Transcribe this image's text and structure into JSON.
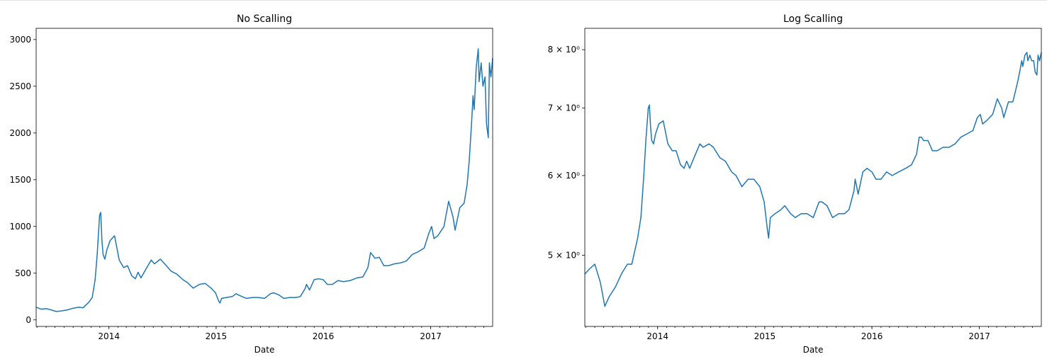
{
  "chart_data": [
    {
      "type": "line",
      "title": "No Scalling",
      "xlabel": "Date",
      "ylabel": "",
      "scale": "linear",
      "line_color": "#1f77b4",
      "xlim": [
        "2013-04-28",
        "2017-07-31"
      ],
      "ylim": [
        -70,
        3120
      ],
      "x_tick_labels": [
        "2014",
        "2015",
        "2016",
        "2017"
      ],
      "y_tick_labels": [
        "0",
        "500",
        "1000",
        "1500",
        "2000",
        "2500",
        "3000"
      ],
      "y_tick_values": [
        0,
        500,
        1000,
        1500,
        2000,
        2500,
        3000
      ],
      "grid": false,
      "series": [
        {
          "x": [
            "2013-04-28",
            "2013-05-15",
            "2013-06-01",
            "2013-06-20",
            "2013-07-05",
            "2013-07-20",
            "2013-08-10",
            "2013-09-01",
            "2013-09-20",
            "2013-10-05",
            "2013-10-25",
            "2013-11-05",
            "2013-11-15",
            "2013-11-22",
            "2013-11-30",
            "2013-12-04",
            "2013-12-08",
            "2013-12-12",
            "2013-12-18",
            "2013-12-25",
            "2014-01-05",
            "2014-01-20",
            "2014-02-05",
            "2014-02-20",
            "2014-03-05",
            "2014-03-20",
            "2014-04-01",
            "2014-04-10",
            "2014-04-20",
            "2014-05-10",
            "2014-05-25",
            "2014-06-05",
            "2014-06-25",
            "2014-07-10",
            "2014-08-01",
            "2014-08-20",
            "2014-09-10",
            "2014-09-25",
            "2014-10-15",
            "2014-11-05",
            "2014-11-25",
            "2014-12-15",
            "2014-12-30",
            "2015-01-10",
            "2015-01-14",
            "2015-01-20",
            "2015-02-05",
            "2015-02-25",
            "2015-03-10",
            "2015-03-30",
            "2015-04-15",
            "2015-05-05",
            "2015-05-25",
            "2015-06-15",
            "2015-07-05",
            "2015-07-15",
            "2015-08-01",
            "2015-08-20",
            "2015-09-10",
            "2015-09-30",
            "2015-10-15",
            "2015-11-01",
            "2015-11-05",
            "2015-11-15",
            "2015-12-01",
            "2015-12-15",
            "2016-01-01",
            "2016-01-15",
            "2016-02-01",
            "2016-02-20",
            "2016-03-10",
            "2016-04-01",
            "2016-04-25",
            "2016-05-15",
            "2016-06-01",
            "2016-06-10",
            "2016-06-18",
            "2016-06-25",
            "2016-07-10",
            "2016-07-25",
            "2016-08-10",
            "2016-08-30",
            "2016-09-20",
            "2016-10-10",
            "2016-10-30",
            "2016-11-20",
            "2016-12-10",
            "2016-12-25",
            "2017-01-04",
            "2017-01-12",
            "2017-01-25",
            "2017-02-15",
            "2017-03-03",
            "2017-03-18",
            "2017-03-25",
            "2017-04-10",
            "2017-04-25",
            "2017-05-05",
            "2017-05-12",
            "2017-05-20",
            "2017-05-25",
            "2017-05-29",
            "2017-06-05",
            "2017-06-12",
            "2017-06-15",
            "2017-06-22",
            "2017-06-28",
            "2017-07-05",
            "2017-07-10",
            "2017-07-16",
            "2017-07-20",
            "2017-07-25",
            "2017-07-31"
          ],
          "y": [
            135,
            115,
            120,
            105,
            90,
            95,
            105,
            125,
            135,
            130,
            190,
            240,
            430,
            700,
            1120,
            1150,
            850,
            700,
            650,
            750,
            850,
            900,
            640,
            560,
            580,
            470,
            440,
            510,
            450,
            560,
            640,
            600,
            650,
            600,
            520,
            490,
            430,
            400,
            340,
            380,
            390,
            340,
            290,
            200,
            180,
            230,
            240,
            250,
            280,
            250,
            230,
            240,
            240,
            230,
            280,
            290,
            270,
            230,
            240,
            240,
            250,
            340,
            380,
            320,
            430,
            440,
            430,
            380,
            380,
            420,
            410,
            420,
            450,
            460,
            560,
            720,
            690,
            660,
            670,
            580,
            580,
            600,
            610,
            630,
            700,
            730,
            770,
            920,
            1000,
            870,
            900,
            1000,
            1270,
            1100,
            960,
            1200,
            1250,
            1450,
            1700,
            2100,
            2400,
            2250,
            2700,
            2900,
            2550,
            2750,
            2500,
            2600,
            2100,
            1950,
            2750,
            2600,
            2800
          ]
        }
      ]
    },
    {
      "type": "line",
      "title": "Log Scalling",
      "xlabel": "Date",
      "ylabel": "",
      "scale": "log",
      "line_color": "#1f77b4",
      "xlim": [
        "2013-04-28",
        "2017-07-31"
      ],
      "ylim": [
        4.25,
        8.4
      ],
      "x_tick_labels": [
        "2014",
        "2015",
        "2016",
        "2017"
      ],
      "y_tick_labels": [
        "5 × 10⁰",
        "6 × 10⁰",
        "7 × 10⁰",
        "8 × 10⁰"
      ],
      "y_tick_values": [
        5,
        6,
        7,
        8
      ],
      "grid": false,
      "series": [
        {
          "x": [
            "2013-04-28",
            "2013-05-15",
            "2013-06-01",
            "2013-06-20",
            "2013-07-05",
            "2013-07-20",
            "2013-08-10",
            "2013-09-01",
            "2013-09-20",
            "2013-10-05",
            "2013-10-25",
            "2013-11-05",
            "2013-11-15",
            "2013-11-22",
            "2013-11-30",
            "2013-12-04",
            "2013-12-08",
            "2013-12-12",
            "2013-12-18",
            "2013-12-25",
            "2014-01-05",
            "2014-01-20",
            "2014-02-05",
            "2014-02-20",
            "2014-03-05",
            "2014-03-20",
            "2014-04-01",
            "2014-04-10",
            "2014-04-20",
            "2014-05-10",
            "2014-05-25",
            "2014-06-05",
            "2014-06-25",
            "2014-07-10",
            "2014-08-01",
            "2014-08-20",
            "2014-09-10",
            "2014-09-25",
            "2014-10-15",
            "2014-11-05",
            "2014-11-25",
            "2014-12-15",
            "2014-12-30",
            "2015-01-10",
            "2015-01-14",
            "2015-01-20",
            "2015-02-05",
            "2015-02-25",
            "2015-03-10",
            "2015-03-30",
            "2015-04-15",
            "2015-05-05",
            "2015-05-25",
            "2015-06-15",
            "2015-07-05",
            "2015-07-15",
            "2015-08-01",
            "2015-08-20",
            "2015-09-10",
            "2015-09-30",
            "2015-10-15",
            "2015-11-01",
            "2015-11-05",
            "2015-11-15",
            "2015-12-01",
            "2015-12-15",
            "2016-01-01",
            "2016-01-15",
            "2016-02-01",
            "2016-02-20",
            "2016-03-10",
            "2016-04-01",
            "2016-04-25",
            "2016-05-15",
            "2016-06-01",
            "2016-06-10",
            "2016-06-18",
            "2016-06-25",
            "2016-07-10",
            "2016-07-25",
            "2016-08-10",
            "2016-08-30",
            "2016-09-20",
            "2016-10-10",
            "2016-10-30",
            "2016-11-20",
            "2016-12-10",
            "2016-12-25",
            "2017-01-04",
            "2017-01-12",
            "2017-01-25",
            "2017-02-15",
            "2017-03-03",
            "2017-03-18",
            "2017-03-25",
            "2017-04-10",
            "2017-04-25",
            "2017-05-05",
            "2017-05-12",
            "2017-05-20",
            "2017-05-25",
            "2017-05-29",
            "2017-06-05",
            "2017-06-12",
            "2017-06-15",
            "2017-06-22",
            "2017-06-28",
            "2017-07-05",
            "2017-07-10",
            "2017-07-16",
            "2017-07-20",
            "2017-07-25",
            "2017-07-31"
          ],
          "y": [
            4.79,
            4.85,
            4.9,
            4.7,
            4.45,
            4.55,
            4.65,
            4.8,
            4.9,
            4.9,
            5.2,
            5.45,
            6.0,
            6.5,
            7.0,
            7.05,
            6.7,
            6.5,
            6.45,
            6.6,
            6.75,
            6.8,
            6.45,
            6.35,
            6.35,
            6.15,
            6.1,
            6.2,
            6.1,
            6.3,
            6.45,
            6.4,
            6.45,
            6.4,
            6.25,
            6.2,
            6.05,
            6.0,
            5.85,
            5.95,
            5.95,
            5.85,
            5.65,
            5.3,
            5.2,
            5.45,
            5.5,
            5.55,
            5.6,
            5.5,
            5.45,
            5.5,
            5.5,
            5.45,
            5.65,
            5.65,
            5.6,
            5.45,
            5.5,
            5.5,
            5.55,
            5.8,
            5.95,
            5.75,
            6.05,
            6.1,
            6.05,
            5.95,
            5.95,
            6.05,
            6.0,
            6.05,
            6.1,
            6.15,
            6.3,
            6.55,
            6.55,
            6.5,
            6.5,
            6.35,
            6.35,
            6.4,
            6.4,
            6.45,
            6.55,
            6.6,
            6.65,
            6.85,
            6.9,
            6.75,
            6.8,
            6.9,
            7.15,
            7.0,
            6.85,
            7.1,
            7.1,
            7.3,
            7.45,
            7.65,
            7.8,
            7.7,
            7.9,
            7.95,
            7.8,
            7.9,
            7.8,
            7.8,
            7.6,
            7.55,
            7.9,
            7.8,
            7.95
          ]
        }
      ]
    }
  ]
}
